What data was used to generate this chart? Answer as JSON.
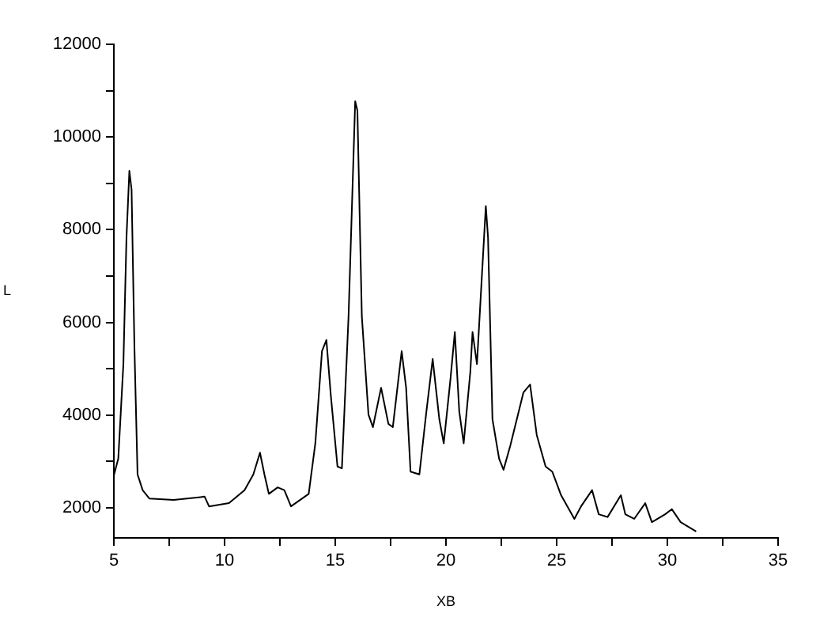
{
  "chart_data": {
    "type": "line",
    "xlabel": "XB",
    "ylabel": "L",
    "x": [
      5.0,
      5.2,
      5.43,
      5.57,
      5.7,
      5.8,
      5.93,
      6.07,
      6.3,
      6.6,
      7.7,
      9.1,
      9.3,
      10.2,
      10.9,
      11.3,
      11.6,
      11.8,
      12.0,
      12.4,
      12.7,
      13.0,
      13.8,
      14.1,
      14.4,
      14.6,
      14.8,
      15.1,
      15.3,
      15.6,
      15.9,
      16.0,
      16.2,
      16.5,
      16.7,
      17.07,
      17.4,
      17.6,
      18.0,
      18.2,
      18.4,
      18.8,
      19.1,
      19.4,
      19.7,
      19.9,
      20.2,
      20.4,
      20.6,
      20.8,
      21.1,
      21.2,
      21.4,
      21.6,
      21.8,
      21.9,
      22.1,
      22.4,
      22.6,
      22.9,
      23.5,
      23.8,
      24.1,
      24.5,
      24.8,
      25.2,
      25.8,
      26.1,
      26.6,
      26.9,
      27.3,
      27.9,
      28.1,
      28.5,
      29.0,
      29.3,
      29.9,
      30.2,
      30.6,
      31.3
    ],
    "series": [
      {
        "color": "#000000",
        "values": [
          2700,
          3060,
          5100,
          7830,
          9270,
          8860,
          5440,
          2720,
          2380,
          2200,
          2170,
          2240,
          2030,
          2100,
          2380,
          2720,
          3190,
          2720,
          2300,
          2440,
          2380,
          2030,
          2300,
          3390,
          5380,
          5620,
          4420,
          2890,
          2850,
          6130,
          10770,
          10570,
          6130,
          4010,
          3740,
          4590,
          3810,
          3740,
          5380,
          4590,
          2780,
          2720,
          4010,
          5210,
          3910,
          3390,
          4760,
          5790,
          4080,
          3390,
          4930,
          5790,
          5100,
          6810,
          8510,
          7830,
          3910,
          3060,
          2820,
          3330,
          4490,
          4660,
          3570,
          2890,
          2780,
          2270,
          1760,
          2030,
          2380,
          1860,
          1800,
          2270,
          1860,
          1760,
          2100,
          1690,
          1860,
          1970,
          1690,
          1490
        ]
      }
    ],
    "xlim": [
      5,
      35
    ],
    "xticks": [
      5,
      {
        "value": 7.5,
        "label": null
      },
      10,
      {
        "value": 12.5,
        "label": null
      },
      15,
      {
        "value": 17.5,
        "label": null
      },
      20,
      {
        "value": 22.5,
        "label": null
      },
      25,
      {
        "value": 27.5,
        "label": null
      },
      30,
      {
        "value": 32.5,
        "label": null
      },
      35
    ],
    "ylim": [
      1350,
      12000
    ],
    "yticks": [
      2000,
      {
        "value": 3000,
        "label": null
      },
      4000,
      {
        "value": 5000,
        "label": null
      },
      6000,
      {
        "value": 7000,
        "label": null
      },
      8000,
      {
        "value": 9000,
        "label": null
      },
      10000,
      {
        "value": 11000,
        "label": null
      },
      12000
    ],
    "grid": false,
    "legend": false,
    "marker": "none",
    "line_style": "solid"
  }
}
